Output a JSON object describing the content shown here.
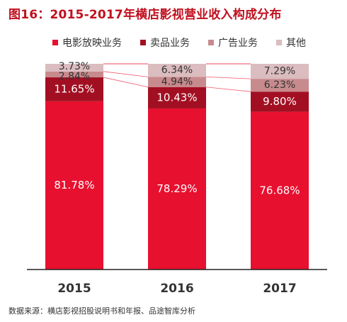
{
  "title": "图16：2015-2017年横店影视营业收入构成分布",
  "source": "数据来源：横店影视招股说明书和年报、品途智库分析",
  "colors": {
    "film": "#e8102f",
    "concession": "#a30f22",
    "ads": "#c78a8d",
    "other": "#dbbcbf"
  },
  "chart_data": {
    "type": "bar",
    "stacked": true,
    "normalized": true,
    "title": "图16：2015-2017年横店影视营业收入构成分布",
    "categories": [
      "2015",
      "2016",
      "2017"
    ],
    "ylim": [
      0,
      100
    ],
    "grid": false,
    "legend_position": "top",
    "series": [
      {
        "name": "电影放映业务",
        "color": "#e8102f",
        "values": [
          81.78,
          78.29,
          76.68
        ],
        "labels": [
          "81.78%",
          "78.29%",
          "76.68%"
        ]
      },
      {
        "name": "卖品业务",
        "color": "#a30f22",
        "values": [
          11.65,
          10.43,
          9.8
        ],
        "labels": [
          "11.65%",
          "10.43%",
          "9.80%"
        ]
      },
      {
        "name": "广告业务",
        "color": "#c78a8d",
        "values": [
          2.84,
          4.94,
          6.23
        ],
        "labels": [
          "2.84%",
          "4.94%",
          "6.23%"
        ]
      },
      {
        "name": "其他",
        "color": "#dbbcbf",
        "values": [
          3.73,
          6.34,
          7.29
        ],
        "labels": [
          "3.73%",
          "6.34%",
          "7.29%"
        ]
      }
    ]
  }
}
